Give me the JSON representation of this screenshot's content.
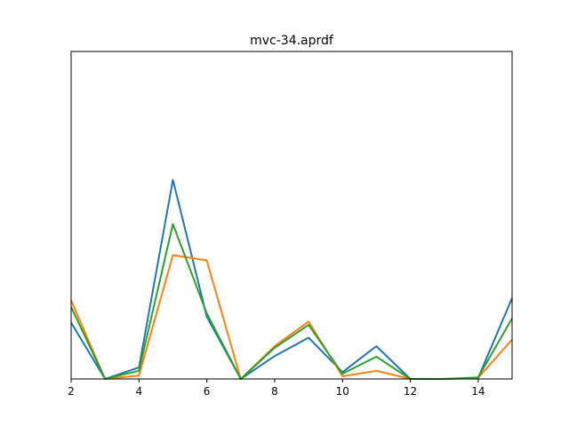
{
  "chart_data": {
    "type": "line",
    "title": "mvc-34.aprdf",
    "xlabel": "",
    "ylabel": "",
    "xlim": [
      2,
      15
    ],
    "ylim": [
      0,
      1
    ],
    "x": [
      2,
      3,
      4,
      5,
      6,
      7,
      8,
      9,
      10,
      11,
      12,
      13,
      14,
      15
    ],
    "xticks": [
      2,
      4,
      6,
      8,
      10,
      12,
      14
    ],
    "yticks": [],
    "grid": false,
    "series": [
      {
        "color": "#1f77b4",
        "values": [
          0.172,
          0.0,
          0.035,
          0.608,
          0.19,
          0.0,
          0.07,
          0.126,
          0.021,
          0.1,
          0.0,
          0.0,
          0.003,
          0.247
        ]
      },
      {
        "color": "#ff7f0e",
        "values": [
          0.24,
          0.0,
          0.01,
          0.378,
          0.362,
          0.0,
          0.1,
          0.175,
          0.008,
          0.025,
          0.0,
          0.0,
          0.003,
          0.12
        ]
      },
      {
        "color": "#2ca02c",
        "values": [
          0.22,
          0.0,
          0.025,
          0.473,
          0.2,
          0.0,
          0.095,
          0.165,
          0.016,
          0.068,
          0.0,
          0.0,
          0.005,
          0.185
        ]
      }
    ]
  }
}
